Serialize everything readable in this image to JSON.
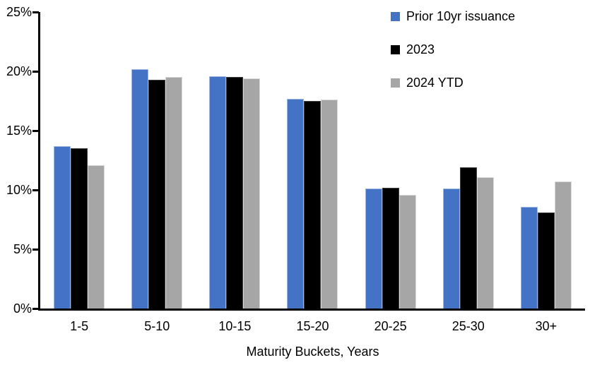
{
  "chart_data": {
    "type": "bar",
    "title": "",
    "xlabel": "Maturity Buckets, Years",
    "ylabel": "",
    "ylim": [
      0,
      25
    ],
    "grid": false,
    "legend_position": "top-right",
    "yticks": [
      {
        "v": 0,
        "label": "0%"
      },
      {
        "v": 5,
        "label": "5%"
      },
      {
        "v": 10,
        "label": "10%"
      },
      {
        "v": 15,
        "label": "15%"
      },
      {
        "v": 20,
        "label": "20%"
      },
      {
        "v": 25,
        "label": "25%"
      }
    ],
    "categories": [
      "1-5",
      "5-10",
      "10-15",
      "15-20",
      "20-25",
      "25-30",
      "30+"
    ],
    "series": [
      {
        "name": "Prior 10yr issuance",
        "color": "#4472C4",
        "border_color": "#9DB7E3",
        "values": [
          13.7,
          20.2,
          19.6,
          17.7,
          10.1,
          10.1,
          8.6
        ]
      },
      {
        "name": "2023",
        "color": "#000000",
        "border_color": "#404040",
        "values": [
          13.5,
          19.3,
          19.5,
          17.5,
          10.2,
          11.9,
          8.1
        ]
      },
      {
        "name": "2024 YTD",
        "color": "#A6A6A6",
        "border_color": "#D9D9D9",
        "values": [
          12.1,
          19.5,
          19.4,
          17.6,
          9.6,
          11.1,
          10.7
        ]
      }
    ]
  },
  "colors": {
    "axis": "#000000",
    "text": "#000000",
    "background": "#FFFFFF"
  }
}
